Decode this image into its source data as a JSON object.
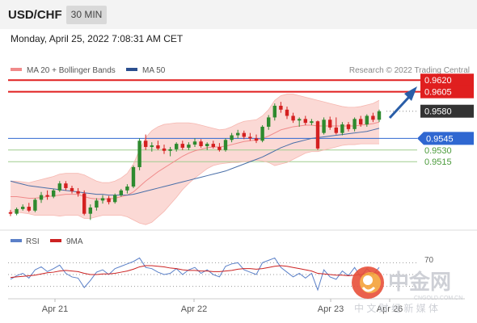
{
  "header": {
    "symbol": "USD/CHF",
    "timeframe": "30 MIN"
  },
  "datetime": "Monday, April 25, 2022 7:08:31 AM CET",
  "legend": [
    {
      "label": "MA 20 + Bollinger Bands",
      "color": "#f08a8a"
    },
    {
      "label": "MA 50",
      "color": "#2b4f8f"
    }
  ],
  "credit": "Research © 2022 Trading Central",
  "colors": {
    "resistance": "#e01f1f",
    "support": "#2f67d1",
    "target": "#4a9a3a",
    "current": "#333333",
    "up_candle": "#2e8a2e",
    "down_candle": "#d42020",
    "band_fill": "#fbd9d5",
    "arrow": "#2a5ea8",
    "rsi": "#5b80c8",
    "rsi_ma": "#cc2222"
  },
  "chart_data": {
    "type": "candlestick",
    "ylim": [
      0.943,
      0.964
    ],
    "levels": [
      {
        "label": "0.9620",
        "value": 0.962,
        "kind": "resistance"
      },
      {
        "label": "0.9605",
        "value": 0.9605,
        "kind": "resistance"
      },
      {
        "label": "0.9580",
        "value": 0.958,
        "kind": "current"
      },
      {
        "label": "0.9545",
        "value": 0.9545,
        "kind": "support"
      },
      {
        "label": "0.9530",
        "value": 0.953,
        "kind": "target"
      },
      {
        "label": "0.9515",
        "value": 0.9515,
        "kind": "target"
      }
    ],
    "x_labels": [
      "Apr 21",
      "Apr 22",
      "Apr 23",
      "Apr 26"
    ],
    "candles": [
      [
        0.945,
        0.9453,
        0.9445,
        0.9448
      ],
      [
        0.9448,
        0.9456,
        0.9446,
        0.9454
      ],
      [
        0.9454,
        0.946,
        0.9452,
        0.9457
      ],
      [
        0.9457,
        0.9462,
        0.945,
        0.9452
      ],
      [
        0.9452,
        0.9468,
        0.945,
        0.9466
      ],
      [
        0.9466,
        0.9476,
        0.9462,
        0.9472
      ],
      [
        0.9472,
        0.9478,
        0.9466,
        0.947
      ],
      [
        0.947,
        0.948,
        0.9468,
        0.9478
      ],
      [
        0.9478,
        0.949,
        0.9476,
        0.9487
      ],
      [
        0.9487,
        0.949,
        0.9478,
        0.9481
      ],
      [
        0.9481,
        0.9484,
        0.9474,
        0.9477
      ],
      [
        0.9477,
        0.9481,
        0.947,
        0.9474
      ],
      [
        0.9474,
        0.9478,
        0.9446,
        0.9448
      ],
      [
        0.9448,
        0.946,
        0.944,
        0.9456
      ],
      [
        0.9456,
        0.9468,
        0.9452,
        0.9465
      ],
      [
        0.9465,
        0.9472,
        0.9461,
        0.9468
      ],
      [
        0.9468,
        0.9471,
        0.946,
        0.9463
      ],
      [
        0.9463,
        0.9474,
        0.9461,
        0.9472
      ],
      [
        0.9472,
        0.948,
        0.947,
        0.9478
      ],
      [
        0.9478,
        0.9486,
        0.9474,
        0.9483
      ],
      [
        0.9483,
        0.951,
        0.9481,
        0.9508
      ],
      [
        0.9508,
        0.9545,
        0.9504,
        0.9542
      ],
      [
        0.9542,
        0.955,
        0.953,
        0.9534
      ],
      [
        0.9534,
        0.954,
        0.9528,
        0.9536
      ],
      [
        0.9536,
        0.9542,
        0.953,
        0.9532
      ],
      [
        0.9532,
        0.9537,
        0.9525,
        0.9529
      ],
      [
        0.9529,
        0.9534,
        0.9522,
        0.9531
      ],
      [
        0.9531,
        0.954,
        0.9528,
        0.9538
      ],
      [
        0.9538,
        0.9542,
        0.953,
        0.9533
      ],
      [
        0.9533,
        0.954,
        0.953,
        0.9537
      ],
      [
        0.9537,
        0.9545,
        0.9534,
        0.9541
      ],
      [
        0.9541,
        0.9544,
        0.9533,
        0.9535
      ],
      [
        0.9535,
        0.954,
        0.953,
        0.9538
      ],
      [
        0.9538,
        0.9542,
        0.9532,
        0.9534
      ],
      [
        0.9534,
        0.9539,
        0.9528,
        0.953
      ],
      [
        0.953,
        0.9545,
        0.9528,
        0.9543
      ],
      [
        0.9543,
        0.9552,
        0.954,
        0.9549
      ],
      [
        0.9549,
        0.9556,
        0.9545,
        0.9552
      ],
      [
        0.9552,
        0.9555,
        0.9544,
        0.9547
      ],
      [
        0.9547,
        0.9552,
        0.9542,
        0.9545
      ],
      [
        0.9545,
        0.955,
        0.9539,
        0.9542
      ],
      [
        0.9542,
        0.9562,
        0.954,
        0.956
      ],
      [
        0.956,
        0.9575,
        0.9556,
        0.9572
      ],
      [
        0.9572,
        0.959,
        0.9568,
        0.9587
      ],
      [
        0.9587,
        0.9592,
        0.9578,
        0.9582
      ],
      [
        0.9582,
        0.9586,
        0.957,
        0.9574
      ],
      [
        0.9574,
        0.9578,
        0.9565,
        0.9568
      ],
      [
        0.9568,
        0.9572,
        0.956,
        0.957
      ],
      [
        0.957,
        0.9574,
        0.9562,
        0.9565
      ],
      [
        0.9565,
        0.957,
        0.9562,
        0.9567
      ],
      [
        0.9567,
        0.9568,
        0.953,
        0.9532
      ],
      [
        0.9552,
        0.9572,
        0.955,
        0.9569
      ],
      [
        0.9569,
        0.9573,
        0.9556,
        0.9559
      ],
      [
        0.9559,
        0.9572,
        0.955,
        0.9552
      ],
      [
        0.9552,
        0.9566,
        0.9549,
        0.9563
      ],
      [
        0.9563,
        0.9566,
        0.9554,
        0.9557
      ],
      [
        0.9557,
        0.9572,
        0.9554,
        0.957
      ],
      [
        0.957,
        0.9574,
        0.956,
        0.9563
      ],
      [
        0.9563,
        0.9576,
        0.956,
        0.9574
      ],
      [
        0.9574,
        0.9578,
        0.9566,
        0.9569
      ],
      [
        0.9569,
        0.9582,
        0.9566,
        0.958
      ]
    ],
    "ma20": [
      0.947,
      0.947,
      0.9469,
      0.9468,
      0.9468,
      0.9469,
      0.947,
      0.9471,
      0.9472,
      0.9473,
      0.9473,
      0.9473,
      0.947,
      0.9468,
      0.9467,
      0.9467,
      0.9467,
      0.9468,
      0.947,
      0.9472,
      0.9476,
      0.9483,
      0.949,
      0.9496,
      0.9502,
      0.9507,
      0.9512,
      0.9517,
      0.9522,
      0.9526,
      0.9529,
      0.9531,
      0.9533,
      0.9534,
      0.9534,
      0.9535,
      0.9537,
      0.9539,
      0.9541,
      0.9542,
      0.9543,
      0.9545,
      0.9548,
      0.9552,
      0.9556,
      0.9558,
      0.956,
      0.9561,
      0.9562,
      0.9562,
      0.9561,
      0.9561,
      0.9561,
      0.9561,
      0.9561,
      0.9561,
      0.9561,
      0.9562,
      0.9563,
      0.9564,
      0.9566
    ],
    "bb_upper": [
      0.949,
      0.949,
      0.9489,
      0.9488,
      0.949,
      0.9492,
      0.9494,
      0.9496,
      0.9499,
      0.95,
      0.95,
      0.95,
      0.9498,
      0.9494,
      0.949,
      0.9488,
      0.9488,
      0.949,
      0.9494,
      0.95,
      0.9512,
      0.953,
      0.9546,
      0.9555,
      0.956,
      0.9563,
      0.9564,
      0.9565,
      0.9565,
      0.9565,
      0.9564,
      0.9562,
      0.956,
      0.9558,
      0.9556,
      0.9557,
      0.956,
      0.9564,
      0.9567,
      0.9568,
      0.9569,
      0.9574,
      0.9582,
      0.9594,
      0.96,
      0.9602,
      0.9602,
      0.96,
      0.9598,
      0.9596,
      0.9594,
      0.9592,
      0.959,
      0.9588,
      0.9586,
      0.9585,
      0.9585,
      0.9586,
      0.9588,
      0.959,
      0.9594
    ],
    "bb_lower": [
      0.945,
      0.945,
      0.9449,
      0.9448,
      0.9446,
      0.9446,
      0.9446,
      0.9446,
      0.9445,
      0.9446,
      0.9446,
      0.9446,
      0.9442,
      0.9442,
      0.9444,
      0.9446,
      0.9446,
      0.9446,
      0.9446,
      0.9444,
      0.944,
      0.9436,
      0.9434,
      0.9437,
      0.9444,
      0.9451,
      0.946,
      0.9469,
      0.9479,
      0.9487,
      0.9494,
      0.95,
      0.9506,
      0.951,
      0.9512,
      0.9513,
      0.9514,
      0.9514,
      0.9515,
      0.9516,
      0.9517,
      0.9516,
      0.9514,
      0.951,
      0.9512,
      0.9514,
      0.9518,
      0.9522,
      0.9526,
      0.9528,
      0.9528,
      0.953,
      0.9532,
      0.9534,
      0.9536,
      0.9537,
      0.9537,
      0.9538,
      0.9538,
      0.9538,
      0.9538
    ],
    "ma50": [
      0.949,
      0.9488,
      0.9486,
      0.9484,
      0.9483,
      0.9482,
      0.9481,
      0.948,
      0.9479,
      0.9478,
      0.9477,
      0.9476,
      0.9475,
      0.9474,
      0.9473,
      0.9473,
      0.9472,
      0.9472,
      0.9472,
      0.9472,
      0.9473,
      0.9475,
      0.9477,
      0.9479,
      0.9481,
      0.9483,
      0.9485,
      0.9487,
      0.9489,
      0.9491,
      0.9493,
      0.9495,
      0.9497,
      0.9499,
      0.9501,
      0.9503,
      0.9506,
      0.9509,
      0.9512,
      0.9515,
      0.9518,
      0.9521,
      0.9525,
      0.9529,
      0.9533,
      0.9536,
      0.9539,
      0.9541,
      0.9543,
      0.9545,
      0.9546,
      0.9547,
      0.9548,
      0.9549,
      0.955,
      0.9551,
      0.9552,
      0.9553,
      0.9554,
      0.9556,
      0.9558
    ],
    "rsi": {
      "legend": [
        {
          "label": "RSI",
          "color": "#5b80c8"
        },
        {
          "label": "9MA",
          "color": "#cc2222"
        }
      ],
      "ylim": [
        20,
        80
      ],
      "ref_label": "70",
      "ref_lines": [
        70,
        50,
        30
      ],
      "rsi": [
        42,
        48,
        52,
        44,
        58,
        63,
        55,
        60,
        66,
        52,
        46,
        44,
        28,
        40,
        54,
        58,
        50,
        60,
        64,
        68,
        72,
        78,
        62,
        60,
        54,
        50,
        52,
        60,
        50,
        58,
        62,
        52,
        58,
        50,
        46,
        64,
        68,
        70,
        58,
        54,
        50,
        70,
        74,
        78,
        62,
        54,
        46,
        52,
        44,
        52,
        24,
        58,
        46,
        42,
        56,
        48,
        62,
        46,
        60,
        50,
        62
      ],
      "ma": [
        45,
        46,
        47,
        48,
        49,
        51,
        53,
        54,
        56,
        57,
        56,
        55,
        52,
        50,
        50,
        51,
        51,
        52,
        54,
        56,
        59,
        63,
        65,
        65,
        64,
        63,
        61,
        60,
        58,
        57,
        57,
        56,
        56,
        55,
        55,
        56,
        57,
        59,
        60,
        60,
        59,
        60,
        62,
        64,
        65,
        64,
        62,
        60,
        58,
        56,
        52,
        51,
        50,
        49,
        49,
        48,
        49,
        50,
        51,
        52,
        53
      ]
    }
  },
  "watermark": {
    "brand": "中金网",
    "url": "CNGOLD.COM.CN",
    "tagline": "中 文 财 经 新 媒 体"
  }
}
